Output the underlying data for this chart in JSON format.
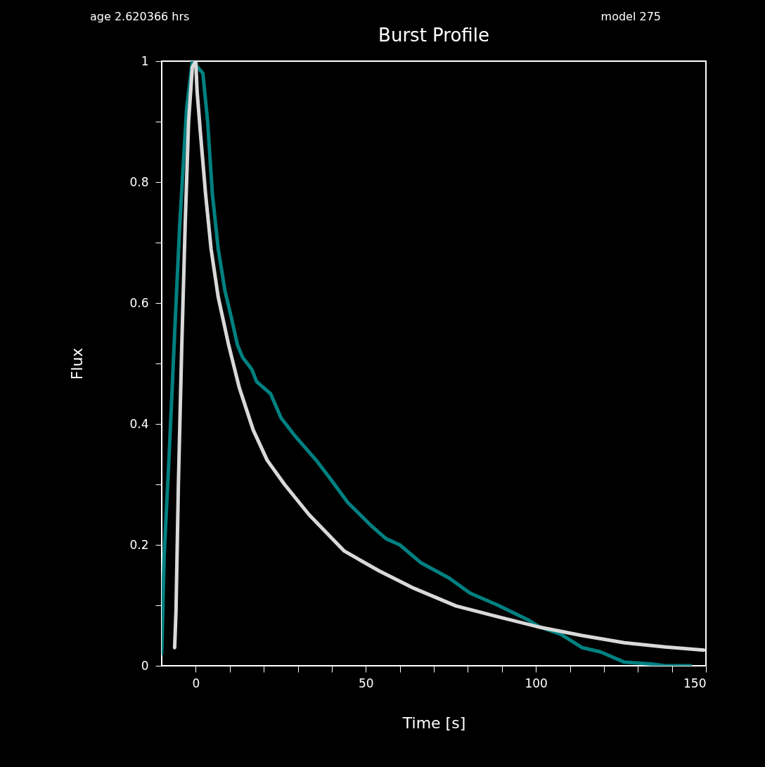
{
  "chart_data": {
    "type": "line",
    "title": "Burst Profile",
    "xlabel": "Time [s]",
    "ylabel": "Flux",
    "annotations": [
      "age 2.620366 hrs",
      "model 275"
    ],
    "xlim": [
      -10,
      150
    ],
    "ylim": [
      0,
      1
    ],
    "xticks": [
      0,
      {
        "value": 10,
        "label": null
      },
      {
        "value": 20,
        "label": null
      },
      {
        "value": 30,
        "label": null
      },
      {
        "value": 40,
        "label": null
      },
      50,
      {
        "value": 60,
        "label": null
      },
      {
        "value": 70,
        "label": null
      },
      {
        "value": 80,
        "label": null
      },
      {
        "value": 90,
        "label": null
      },
      100,
      {
        "value": 110,
        "label": null
      },
      {
        "value": 120,
        "label": null
      },
      {
        "value": 130,
        "label": null
      },
      {
        "value": 140,
        "label": null
      },
      150
    ],
    "yticks": [
      0,
      {
        "value": 0.1,
        "label": null
      },
      0.2,
      {
        "value": 0.3,
        "label": null
      },
      0.4,
      {
        "value": 0.5,
        "label": null
      },
      0.6,
      {
        "value": 0.7,
        "label": null
      },
      0.8,
      {
        "value": 0.9,
        "label": null
      },
      1
    ],
    "grid": false,
    "legend": false,
    "marker": "none",
    "line_style": "solid",
    "series": [
      {
        "color": "#008080",
        "x": [
          -10,
          -9.3,
          -7.8,
          -6.2,
          -4.7,
          -2.7,
          -1,
          2.1,
          3.5,
          4.9,
          6.6,
          8.6,
          10.3,
          12.3,
          13.8,
          16.5,
          17.9,
          22,
          25.1,
          29.2,
          35.4,
          39.5,
          44.7,
          51.9,
          56,
          60,
          66.3,
          74.5,
          80.7,
          88.9,
          97.7,
          101.2,
          107.4,
          113.6,
          119,
          126,
          134,
          138,
          145.5
        ],
        "values": [
          0.02,
          0.18,
          0.35,
          0.55,
          0.73,
          0.92,
          1.0,
          0.98,
          0.9,
          0.78,
          0.69,
          0.62,
          0.58,
          0.53,
          0.51,
          0.49,
          0.47,
          0.45,
          0.41,
          0.38,
          0.34,
          0.31,
          0.27,
          0.23,
          0.21,
          0.2,
          0.17,
          0.145,
          0.12,
          0.1,
          0.076,
          0.064,
          0.052,
          0.03,
          0.023,
          0.006,
          0.003,
          0,
          0
        ]
      },
      {
        "color": "#d9d9d9",
        "x": [
          -6.2,
          -5.8,
          -5.1,
          -4.1,
          -3.1,
          -2.1,
          -1,
          0,
          0.4,
          1.4,
          2.9,
          4.5,
          6.6,
          9.7,
          12.8,
          16.9,
          21,
          26.1,
          33.3,
          43.6,
          53.9,
          64.2,
          76.5,
          88.9,
          101,
          113.6,
          126,
          138,
          149.4
        ],
        "values": [
          0.03,
          0.09,
          0.3,
          0.53,
          0.73,
          0.9,
          0.99,
          1.0,
          0.95,
          0.88,
          0.78,
          0.69,
          0.61,
          0.53,
          0.46,
          0.39,
          0.34,
          0.3,
          0.25,
          0.19,
          0.157,
          0.128,
          0.099,
          0.081,
          0.064,
          0.05,
          0.038,
          0.031,
          0.026
        ]
      }
    ]
  }
}
